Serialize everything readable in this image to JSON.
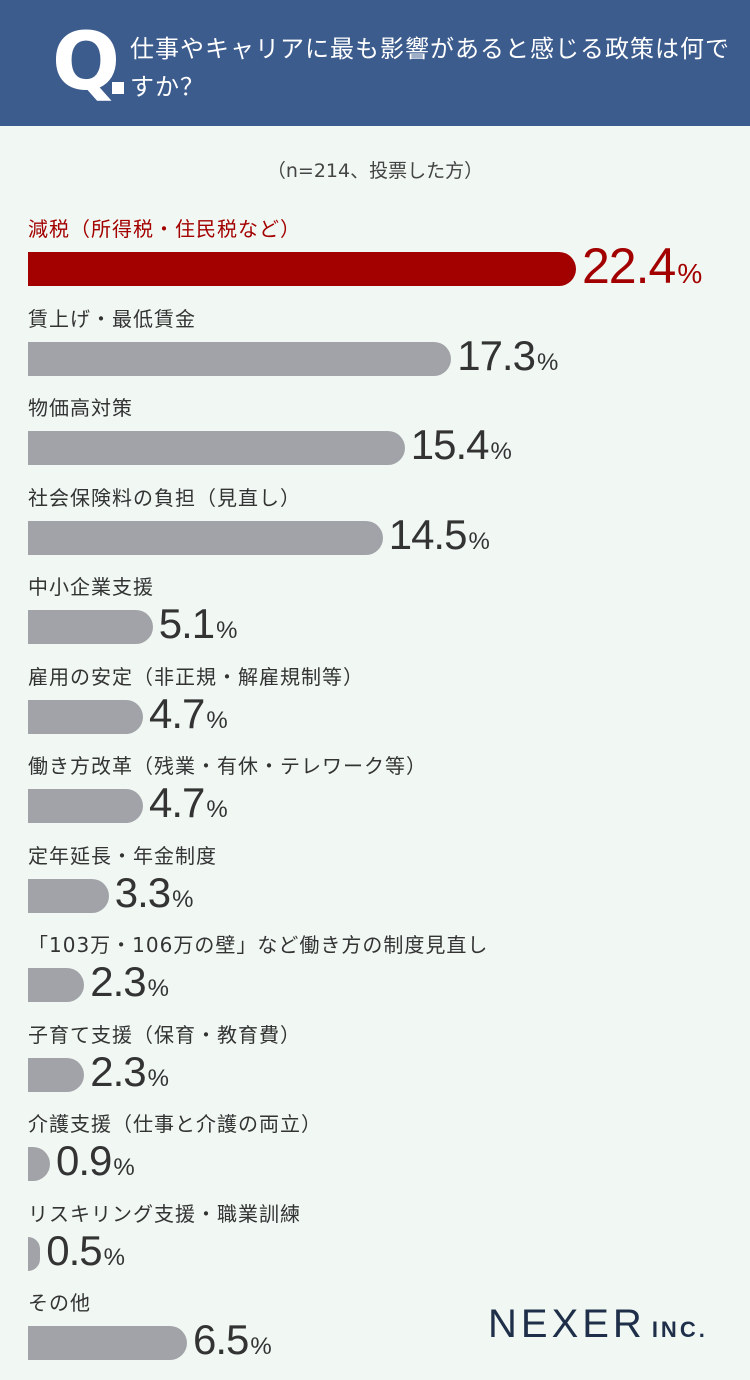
{
  "header": {
    "q_mark": "Q",
    "question": "仕事やキャリアに最も影響があると感じる政策は何ですか？"
  },
  "sample_note": "（n=214、投票した方）",
  "logo": {
    "main": "NEXER",
    "sub": "INC."
  },
  "colors": {
    "header": "#3d5c8e",
    "highlight": "#a30000",
    "bar": "#a2a3a8",
    "background": "#f1f8f3"
  },
  "chart_data": {
    "type": "bar",
    "orientation": "horizontal",
    "unit": "%",
    "xlim": [
      0,
      22.4
    ],
    "highlight_index": 0,
    "categories": [
      "減税（所得税・住民税など）",
      "賃上げ・最低賃金",
      "物価高対策",
      "社会保険料の負担（見直し）",
      "中小企業支援",
      "雇用の安定（非正規・解雇規制等）",
      "働き方改革（残業・有休・テレワーク等）",
      "定年延長・年金制度",
      "「103万・106万の壁」など働き方の制度見直し",
      "子育て支援（保育・教育費）",
      "介護支援（仕事と介護の両立）",
      "リスキリング支援・職業訓練",
      "その他"
    ],
    "values": [
      22.4,
      17.3,
      15.4,
      14.5,
      5.1,
      4.7,
      4.7,
      3.3,
      2.3,
      2.3,
      0.9,
      0.5,
      6.5
    ]
  }
}
